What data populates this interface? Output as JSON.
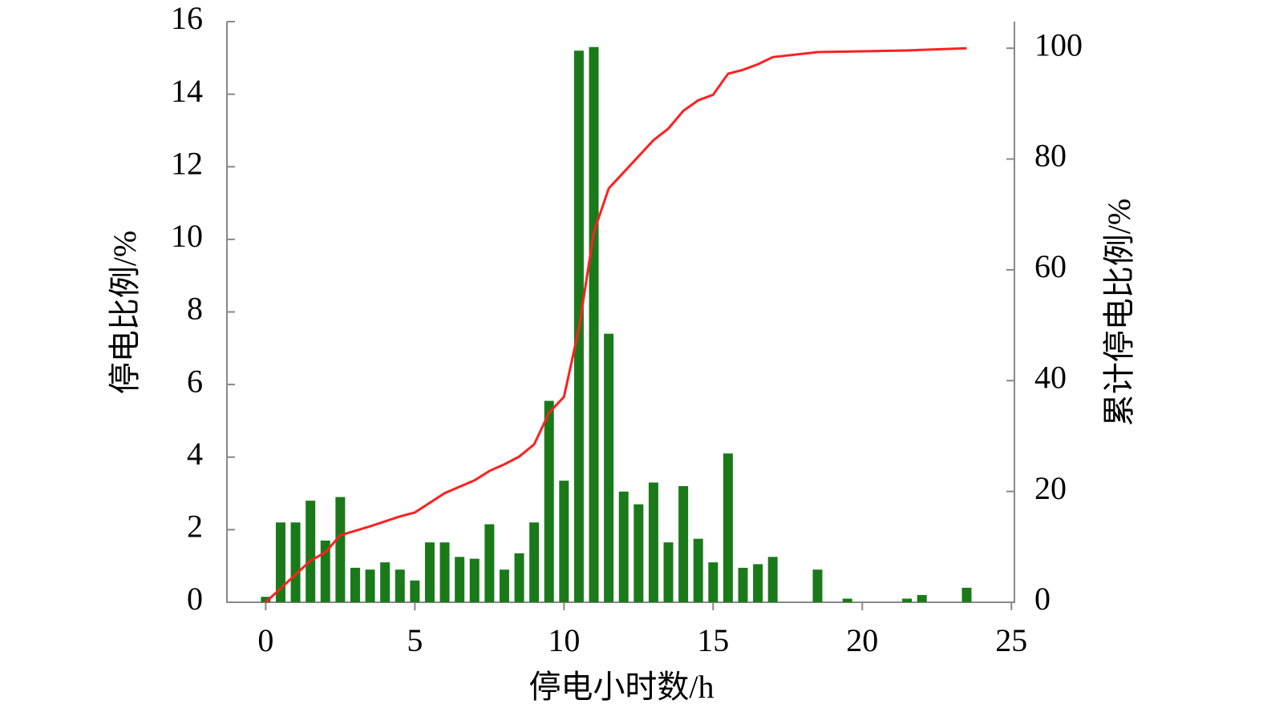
{
  "chart_data": {
    "type": "combo",
    "x_label": "停电小时数/h",
    "y_label": "停电比例/%",
    "y2_label": "累计停电比例/%",
    "xlim": [
      -1.3,
      25.1
    ],
    "xticks": [
      0,
      5,
      10,
      15,
      20,
      25
    ],
    "ylim": [
      0,
      16
    ],
    "yticks": [
      0,
      2,
      4,
      6,
      8,
      10,
      12,
      14,
      16
    ],
    "y2lim": [
      0,
      104.8
    ],
    "y2ticks": [
      0,
      20,
      40,
      60,
      80,
      100
    ],
    "series": [
      {
        "type": "bar",
        "color": "#1a7a1a",
        "x": [
          0,
          0.5,
          1,
          1.5,
          2,
          2.5,
          3,
          3.5,
          4,
          4.5,
          5,
          5.5,
          6,
          6.5,
          7,
          7.5,
          8,
          8.5,
          9,
          9.5,
          10,
          10.5,
          11,
          11.5,
          12,
          12.5,
          13,
          13.5,
          14,
          14.5,
          15,
          15.5,
          16,
          16.5,
          17,
          18.5,
          19.5,
          21.5,
          22,
          23.5
        ],
        "values": [
          0.15,
          2.2,
          2.2,
          2.8,
          1.7,
          2.9,
          0.95,
          0.9,
          1.1,
          0.9,
          0.6,
          1.65,
          1.65,
          1.25,
          1.2,
          2.15,
          0.9,
          1.35,
          2.2,
          5.55,
          3.35,
          15.2,
          15.3,
          7.4,
          3.05,
          2.7,
          3.3,
          1.65,
          3.2,
          1.75,
          1.1,
          4.1,
          0.95,
          1.05,
          1.25,
          0.9,
          0.1,
          0.1,
          0.2,
          0.4
        ]
      },
      {
        "type": "line",
        "axis": "y2",
        "color": "#ff2020",
        "x": [
          0,
          1.5,
          2,
          2.5,
          3.5,
          4.5,
          5,
          6,
          7,
          7.5,
          8,
          8.5,
          9,
          9.5,
          10,
          10.5,
          11,
          11.5,
          12,
          12.5,
          13,
          13.5,
          14,
          14.5,
          15,
          15.5,
          16,
          16.5,
          17,
          18.5,
          19.5,
          21.5,
          23.5
        ],
        "values": [
          0,
          7.5,
          9,
          12.1,
          13.7,
          15.5,
          16.2,
          19.7,
          22,
          23.7,
          24.9,
          26.3,
          28.5,
          34.2,
          37.1,
          49.4,
          66.8,
          74.7,
          77.6,
          80.5,
          83.4,
          85.5,
          88.7,
          90.6,
          91.6,
          95.4,
          96.1,
          97.1,
          98.4,
          99.3,
          99.4,
          99.6,
          100
        ]
      }
    ]
  }
}
